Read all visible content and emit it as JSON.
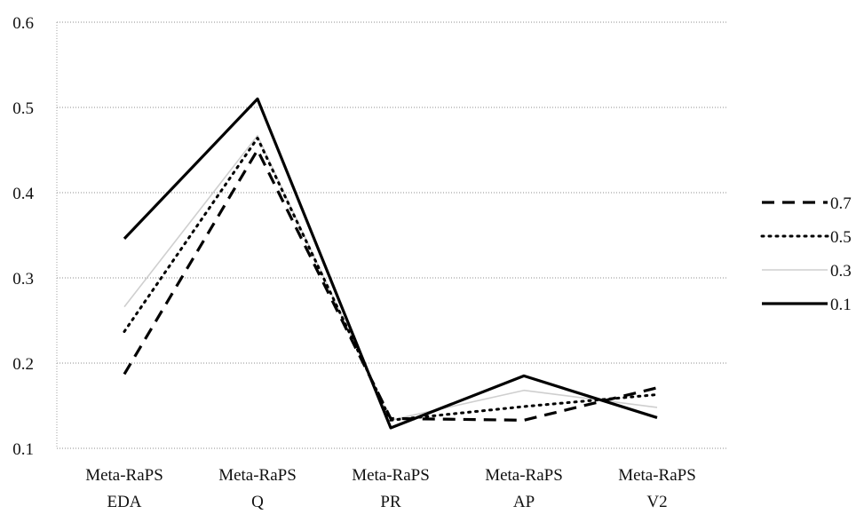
{
  "chart_data": {
    "type": "line",
    "categories": [
      [
        "Meta-RaPS",
        "EDA"
      ],
      [
        "Meta-RaPS",
        "Q"
      ],
      [
        "Meta-RaPS",
        "PR"
      ],
      [
        "Meta-RaPS",
        "AP"
      ],
      [
        "Meta-RaPS",
        "V2"
      ]
    ],
    "ylim": [
      0.1,
      0.6
    ],
    "yticks": [
      "0.1",
      "0.2",
      "0.3",
      "0.4",
      "0.5",
      "0.6"
    ],
    "grid": true,
    "legend_position": "right",
    "series": [
      {
        "name": "0.7",
        "style": "dashed",
        "color": "#000000",
        "values": [
          0.187,
          0.45,
          0.135,
          0.133,
          0.171
        ]
      },
      {
        "name": "0.5",
        "style": "dotted",
        "color": "#000000",
        "values": [
          0.237,
          0.464,
          0.133,
          0.149,
          0.163
        ]
      },
      {
        "name": "0.3",
        "style": "solid-light",
        "color": "#cfcfcf",
        "values": [
          0.266,
          0.467,
          0.133,
          0.168,
          0.148
        ]
      },
      {
        "name": "0.1",
        "style": "solid",
        "color": "#000000",
        "values": [
          0.346,
          0.51,
          0.124,
          0.185,
          0.136
        ]
      }
    ]
  }
}
